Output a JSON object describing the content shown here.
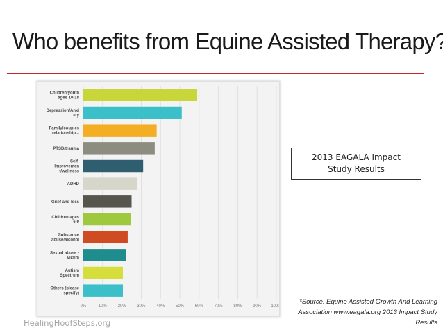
{
  "slide": {
    "title": "Who benefits from Equine Assisted Therapy?",
    "study_label": "2013 EAGALA Impact Study Results",
    "source_prefix": "*Source: Equine Assisted Growth And Learning Association",
    "source_link": "www.eagala.org",
    "source_suffix": "2013 Impact Study Results",
    "footer": "HealingHoofSteps.org",
    "accent_color": "#c0282d"
  },
  "chart_data": {
    "type": "bar",
    "orientation": "horizontal",
    "categories": [
      [
        "Children/youth",
        "ages 10-18"
      ],
      [
        "Depression/Anxi",
        "ety"
      ],
      [
        "Family/couples",
        "relationship..."
      ],
      [
        "PTSD/trauma"
      ],
      [
        "Self-",
        "Improvemen",
        "t/wellness"
      ],
      [
        "ADHD"
      ],
      [
        "Grief and loss"
      ],
      [
        "Children ages",
        "6-9"
      ],
      [
        "Substance",
        "abuse/alcohol"
      ],
      [
        "Sexual abuse -",
        "victim"
      ],
      [
        "Autism",
        "Spectrum"
      ],
      [
        "Others (please",
        "specify)"
      ]
    ],
    "values": [
      59,
      51,
      38,
      37,
      31,
      28,
      25,
      24.5,
      23,
      22,
      20.5,
      20.5
    ],
    "colors": [
      "#c8d63a",
      "#3bbfc8",
      "#f4ae24",
      "#8c8c80",
      "#2e5e70",
      "#d6d6ca",
      "#56564d",
      "#9ec93e",
      "#cf4b22",
      "#1f8c8e",
      "#d5de3a",
      "#3bbfc8"
    ],
    "xlim": [
      0,
      100
    ],
    "ticks": [
      "0%",
      "10%",
      "20%",
      "30%",
      "40%",
      "50%",
      "60%",
      "70%",
      "80%",
      "90%",
      "100%"
    ],
    "grid": true
  }
}
